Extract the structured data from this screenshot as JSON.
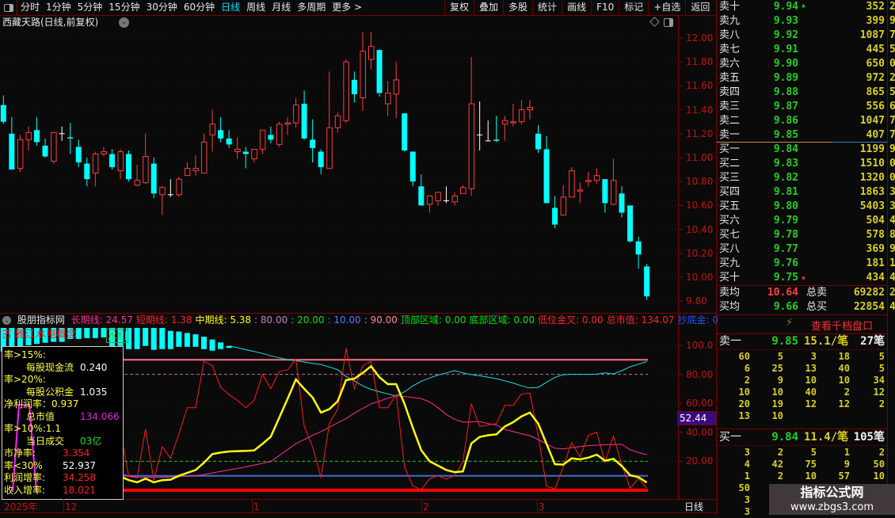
{
  "toolbar": {
    "left_periods": [
      "分时",
      "1分钟",
      "5分钟",
      "15分钟",
      "30分钟",
      "60分钟",
      "日线",
      "周线",
      "月线",
      "多周期",
      "更多 >"
    ],
    "active_period": "日线",
    "right_buttons": [
      "复权",
      "叠加",
      "多股",
      "统计",
      "画线",
      "F10",
      "标记",
      "+自选",
      "返回"
    ]
  },
  "main_chart": {
    "title": "西藏天路(日线,前复权)",
    "price_ticks": [
      "12.00",
      "11.80",
      "11.60",
      "11.40",
      "11.20",
      "11.00",
      "10.80",
      "10.60",
      "10.40",
      "10.20",
      "10.00",
      "9.80"
    ],
    "colors": {
      "up": "#ff3c3c",
      "down": "#00ffff",
      "flat": "#ffffff",
      "grid": "#5a0000",
      "axis": "#c81010"
    }
  },
  "chart_data": {
    "type": "candlestick",
    "ylim": [
      9.8,
      12.0
    ],
    "ohlc_order": [
      "open",
      "close",
      "high",
      "low"
    ],
    "candles": [
      [
        11.44,
        11.3,
        11.52,
        11.28
      ],
      [
        11.2,
        10.9,
        11.34,
        10.9
      ],
      [
        10.91,
        11.15,
        11.19,
        10.88
      ],
      [
        11.15,
        11.21,
        11.26,
        11.06
      ],
      [
        11.23,
        11.13,
        11.34,
        11.1
      ],
      [
        11.1,
        11.01,
        11.16,
        11.0
      ],
      [
        10.97,
        11.21,
        11.21,
        10.95
      ],
      [
        11.2,
        11.2,
        11.26,
        11.14
      ],
      [
        11.17,
        11.16,
        11.29,
        11.03
      ],
      [
        11.09,
        10.96,
        11.15,
        10.92
      ],
      [
        10.95,
        10.82,
        11.0,
        10.76
      ],
      [
        10.87,
        11.03,
        11.05,
        10.76
      ],
      [
        11.03,
        11.05,
        11.09,
        11.01
      ],
      [
        11.03,
        10.92,
        11.07,
        10.9
      ],
      [
        10.89,
        11.05,
        11.07,
        10.82
      ],
      [
        11.03,
        10.82,
        11.06,
        10.8
      ],
      [
        10.77,
        10.81,
        10.94,
        10.76
      ],
      [
        10.79,
        11.01,
        11.2,
        10.78
      ],
      [
        10.95,
        10.7,
        11.0,
        10.66
      ],
      [
        10.69,
        10.75,
        10.76,
        10.52
      ],
      [
        10.69,
        10.69,
        10.82,
        10.67
      ],
      [
        10.69,
        10.82,
        10.84,
        10.67
      ],
      [
        10.85,
        10.91,
        10.96,
        10.85
      ],
      [
        10.89,
        10.91,
        11.02,
        10.85
      ],
      [
        10.87,
        11.13,
        11.2,
        10.87
      ],
      [
        11.19,
        11.28,
        11.4,
        11.05
      ],
      [
        11.23,
        11.16,
        11.34,
        11.13
      ],
      [
        11.16,
        11.11,
        11.23,
        11.08
      ],
      [
        11.05,
        11.07,
        11.17,
        10.99
      ],
      [
        11.05,
        11.03,
        11.09,
        10.91
      ],
      [
        10.99,
        11.07,
        11.07,
        10.96
      ],
      [
        11.07,
        11.23,
        11.23,
        11.03
      ],
      [
        11.19,
        11.15,
        11.26,
        11.12
      ],
      [
        11.11,
        11.28,
        11.3,
        11.09
      ],
      [
        11.28,
        11.29,
        11.34,
        11.19
      ],
      [
        11.29,
        11.44,
        11.5,
        11.25
      ],
      [
        11.45,
        11.16,
        11.56,
        11.15
      ],
      [
        11.15,
        11.08,
        11.32,
        10.96
      ],
      [
        11.05,
        10.92,
        11.07,
        10.86
      ],
      [
        10.91,
        11.25,
        11.72,
        10.91
      ],
      [
        11.25,
        11.35,
        11.38,
        11.21
      ],
      [
        11.31,
        11.8,
        11.82,
        11.29
      ],
      [
        11.65,
        11.53,
        11.72,
        11.46
      ],
      [
        11.5,
        11.89,
        12.05,
        11.39
      ],
      [
        11.82,
        11.93,
        12.05,
        11.74
      ],
      [
        11.9,
        11.54,
        11.9,
        11.51
      ],
      [
        11.45,
        11.54,
        11.64,
        11.35
      ],
      [
        11.53,
        11.65,
        11.8,
        11.33
      ],
      [
        11.37,
        11.06,
        11.37,
        11.05
      ],
      [
        11.05,
        10.8,
        11.05,
        10.76
      ],
      [
        10.76,
        10.6,
        10.86,
        10.6
      ],
      [
        10.61,
        10.68,
        10.68,
        10.54
      ],
      [
        10.64,
        10.71,
        10.71,
        10.6
      ],
      [
        10.64,
        10.64,
        10.76,
        10.62
      ],
      [
        10.63,
        10.68,
        10.71,
        10.6
      ],
      [
        10.7,
        10.75,
        10.77,
        10.7
      ],
      [
        10.74,
        11.45,
        11.84,
        10.68
      ],
      [
        11.19,
        11.19,
        11.47,
        11.06
      ],
      [
        11.14,
        11.14,
        11.31,
        11.14
      ],
      [
        11.15,
        11.14,
        11.35,
        11.13
      ],
      [
        11.28,
        11.31,
        11.35,
        11.14
      ],
      [
        11.29,
        11.3,
        11.45,
        11.26
      ],
      [
        11.3,
        11.4,
        11.48,
        11.28
      ],
      [
        11.4,
        11.42,
        11.48,
        11.32
      ],
      [
        11.2,
        11.07,
        11.27,
        11.04
      ],
      [
        11.07,
        10.62,
        11.18,
        10.62
      ],
      [
        10.58,
        10.44,
        10.68,
        10.41
      ],
      [
        10.52,
        10.67,
        10.77,
        10.52
      ],
      [
        10.67,
        10.89,
        10.92,
        10.67
      ],
      [
        10.72,
        10.73,
        10.79,
        10.62
      ],
      [
        10.8,
        10.81,
        10.88,
        10.76
      ],
      [
        10.81,
        10.85,
        10.91,
        10.78
      ],
      [
        10.82,
        10.62,
        10.82,
        10.54
      ],
      [
        10.61,
        10.81,
        10.99,
        10.6
      ],
      [
        10.7,
        10.54,
        10.76,
        10.5
      ],
      [
        10.6,
        10.3,
        10.6,
        10.29
      ],
      [
        10.3,
        10.19,
        10.34,
        10.07
      ],
      [
        10.09,
        9.84,
        10.11,
        9.81
      ]
    ],
    "indicator": {
      "ylim": [
        0,
        110
      ],
      "ticks": [
        "100.0",
        "80.00",
        "60.00",
        "40.00",
        "20.00"
      ],
      "levels": [
        {
          "value": 90,
          "color": "#ff6e8c"
        },
        {
          "value": 80,
          "color": "#b070b0"
        },
        {
          "value": 20,
          "color": "#00dd00"
        },
        {
          "value": 10,
          "color": "#3c6cd0"
        },
        {
          "value": 0,
          "color": "#ff0000"
        }
      ],
      "long_line": [
        null,
        null,
        null,
        null,
        null,
        null,
        null,
        null,
        null,
        null,
        null,
        null,
        null,
        null,
        11.3,
        10,
        8.9,
        8.9,
        8.9,
        9,
        9.2,
        9.4,
        9.7,
        10,
        10.8,
        12,
        13,
        14,
        15,
        16.2,
        17.4,
        18.6,
        19.8,
        24,
        28,
        32.2,
        35,
        38,
        40.5,
        43.5,
        46.5,
        49.5,
        53.2,
        56.5,
        59.6,
        61.5,
        63.5,
        65.2,
        64.7,
        64,
        63.2,
        61,
        57,
        52.3,
        49,
        47,
        47.2,
        47.4,
        46,
        45,
        42,
        40.5,
        39,
        37.7,
        35,
        32,
        29,
        28.6,
        29.4,
        30.2,
        30.8,
        31.1,
        31.4,
        31.6,
        31.7,
        28,
        26,
        24.57
      ],
      "short_line": [
        null,
        null,
        null,
        null,
        null,
        null,
        null,
        null,
        null,
        null,
        null,
        null,
        null,
        null,
        41,
        9.5,
        8.6,
        42,
        7,
        30,
        22,
        39,
        57,
        57,
        89,
        86,
        71,
        66,
        62,
        57,
        62,
        80,
        70,
        82,
        83,
        90.5,
        44,
        30,
        8.6,
        46,
        56,
        98,
        70,
        86,
        89,
        57,
        57,
        66,
        16,
        3,
        0.4,
        8,
        10,
        7.7,
        10,
        20,
        59.6,
        44,
        45,
        46,
        58.6,
        58.6,
        66.5,
        67,
        37.7,
        2.7,
        1.1,
        16,
        33,
        23,
        38,
        40,
        19.5,
        37.4,
        17.7,
        1.3,
        8.2,
        1.38
      ],
      "mid_line": [
        null,
        null,
        null,
        null,
        null,
        null,
        null,
        null,
        null,
        null,
        null,
        null,
        null,
        null,
        9.5,
        7,
        5.5,
        8,
        5.5,
        7,
        7.3,
        10,
        12,
        14,
        19,
        25,
        26,
        26.8,
        27,
        27.2,
        27.5,
        32,
        37,
        50,
        63,
        76.5,
        70,
        64,
        53.6,
        56,
        61.4,
        76,
        77,
        81,
        85.6,
        78,
        73.2,
        73.2,
        59.6,
        43,
        27.7,
        20,
        17,
        14,
        12.5,
        13,
        32.3,
        36.8,
        38,
        38.6,
        44,
        47,
        51,
        53.6,
        46,
        32,
        18,
        17.7,
        22,
        21.3,
        22.5,
        24.6,
        20.4,
        21.7,
        16.8,
        10.4,
        9,
        5.38
      ],
      "cyan_line": [
        112,
        112,
        112,
        112,
        112,
        112,
        112,
        112,
        112,
        112,
        112,
        112,
        112,
        112,
        112,
        112,
        112,
        112,
        112,
        112,
        110,
        109.5,
        108.5,
        107.6,
        106,
        104,
        102,
        99.6,
        98.4,
        97,
        95.8,
        94.4,
        92.8,
        91.4,
        90.1,
        89.4,
        88.5,
        87.6,
        86.8,
        85,
        83.2,
        78.5,
        75.5,
        72,
        69.6,
        68,
        66.5,
        65,
        68,
        72,
        75.2,
        77.5,
        79.5,
        81,
        82.5,
        81,
        79.8,
        79,
        78,
        77,
        75.5,
        74,
        72,
        70.6,
        71,
        74.5,
        77.9,
        79.8,
        80,
        80,
        80,
        80.1,
        81,
        80.3,
        82.5,
        85.2,
        87,
        88.8
      ],
      "cyan_bars_bottom": [
        95.6,
        97,
        98.9,
        100,
        101,
        101.8,
        102.4,
        102.4,
        104.4,
        104.4,
        105,
        105,
        105.5,
        98.4,
        99.6,
        97.4,
        97.4,
        99.6,
        96.9,
        97.4,
        97.4,
        99,
        99,
        99,
        97.4,
        96.3,
        97.4,
        98.2
      ],
      "colors": {
        "long": "#ff2d95",
        "short": "#ff1a1a",
        "mid": "#ffff00",
        "cyan": "#19e0e8"
      },
      "current_value_label": "52.44"
    }
  },
  "indicator": {
    "name": "股朋指标网",
    "legend": [
      {
        "text": "长期线: 24.57",
        "color": "#ff2d95"
      },
      {
        "text": "短期线: 1.38",
        "color": "#ff2020"
      },
      {
        "text": "中期线: 5.38",
        "color": "#ffff00"
      },
      {
        "text": ": 80.00",
        "color": "#c080c0"
      },
      {
        "text": ": 20.00",
        "color": "#00e000"
      },
      {
        "text": ": 10.00",
        "color": "#4a7cff"
      },
      {
        "text": ": 90.00",
        "color": "#ff80a0"
      },
      {
        "text": "顶部区域: 0.00",
        "color": "#00e000"
      },
      {
        "text": "底部区域: 0.00",
        "color": "#00e000"
      },
      {
        "text": "低位金叉: 0.00",
        "color": "#ff2020"
      },
      {
        "text": "总市值: 134.07",
        "color": "#ff2020"
      },
      {
        "text": "抄底金: 0",
        "color": "#2050ff"
      }
    ],
    "concept_label": "古 雅江水电概念",
    "concept_label2": "水利",
    "info_box": [
      {
        "l": "率>15%:",
        "m": "每股现金流",
        "v": "0.240",
        "vc": "#ffffff"
      },
      {
        "l": "率>20%:",
        "m": "每股公积金",
        "v": "1.035",
        "vc": "#ffffff"
      },
      {
        "l": "净利润率：0.937",
        "m": "总市值",
        "v": "134.066",
        "vc": "#e020e0"
      },
      {
        "l": "率>10%:1.1",
        "m": "当日成交",
        "v": "03亿",
        "vc": "#20e020"
      },
      {
        "l": "市净率:",
        "m": "",
        "v": "3.354",
        "vc": "#ff2020"
      },
      {
        "l": "率<30%",
        "m": "",
        "v": "52.937",
        "vc": "#ffffff"
      },
      {
        "l": "利润增率:",
        "m": "",
        "v": "34.258",
        "vc": "#ff2020"
      },
      {
        "l": "收入增率:",
        "m": "",
        "v": "18.021",
        "vc": "#ff2020"
      }
    ]
  },
  "date_axis": {
    "labels": [
      "2025年",
      "12",
      "1",
      "2",
      "3"
    ],
    "period": "日线"
  },
  "order_book": {
    "sell": [
      {
        "label": "卖十",
        "price": "9.94",
        "vol": "352"
      },
      {
        "label": "卖九",
        "price": "9.93",
        "vol": "399"
      },
      {
        "label": "卖八",
        "price": "9.92",
        "vol": "1087"
      },
      {
        "label": "卖七",
        "price": "9.91",
        "vol": "445"
      },
      {
        "label": "卖六",
        "price": "9.90",
        "vol": "650"
      },
      {
        "label": "卖五",
        "price": "9.89",
        "vol": "972"
      },
      {
        "label": "卖四",
        "price": "9.88",
        "vol": "865"
      },
      {
        "label": "卖三",
        "price": "9.87",
        "vol": "556"
      },
      {
        "label": "卖二",
        "price": "9.86",
        "vol": "1047"
      },
      {
        "label": "卖一",
        "price": "9.85",
        "vol": "407"
      }
    ],
    "buy": [
      {
        "label": "买一",
        "price": "9.84",
        "vol": "1199"
      },
      {
        "label": "买二",
        "price": "9.83",
        "vol": "1510"
      },
      {
        "label": "买三",
        "price": "9.82",
        "vol": "1320"
      },
      {
        "label": "买四",
        "price": "9.81",
        "vol": "1863"
      },
      {
        "label": "买五",
        "price": "9.80",
        "vol": "5403"
      },
      {
        "label": "买六",
        "price": "9.79",
        "vol": "504"
      },
      {
        "label": "买七",
        "price": "9.78",
        "vol": "578"
      },
      {
        "label": "买八",
        "price": "9.77",
        "vol": "369"
      },
      {
        "label": "买九",
        "price": "9.76",
        "vol": "181"
      },
      {
        "label": "买十",
        "price": "9.75",
        "vol": "434"
      }
    ],
    "summary": [
      {
        "label": "卖均",
        "price": "10.64",
        "price_color": "#ff4040",
        "label2": "总卖",
        "vol": "69282"
      },
      {
        "label": "买均",
        "price": "9.66",
        "price_color": "#22d022",
        "label2": "总买",
        "vol": "22854"
      }
    ],
    "qiandang_label": "查看千档盘口",
    "ask_queue": {
      "label": "卖一",
      "price": "9.85",
      "avg": "15.1/笔",
      "count": "27笔",
      "rows": [
        [
          "60",
          "5",
          "3",
          "18",
          "5"
        ],
        [
          "6",
          "25",
          "13",
          "40",
          "5"
        ],
        [
          "2",
          "9",
          "10",
          "10",
          "34"
        ],
        [
          "10",
          "10",
          "40",
          "2",
          "12"
        ],
        [
          "20",
          "19",
          "12",
          "12",
          "2"
        ],
        [
          "13",
          "10",
          "",
          "",
          ""
        ]
      ]
    },
    "bid_queue": {
      "label": "买一",
      "price": "9.84",
      "avg": "11.4/笔",
      "count": "105笔",
      "rows": [
        [
          "3",
          "2",
          "5",
          "1",
          "2"
        ],
        [
          "4",
          "42",
          "75",
          "9",
          "50"
        ],
        [
          "1",
          "2",
          "10",
          "57",
          "10"
        ],
        [
          "50",
          "",
          "",
          "",
          ""
        ],
        [
          "3",
          "",
          "",
          "",
          ""
        ],
        [
          "3",
          "",
          "",
          "",
          ""
        ]
      ]
    }
  },
  "side_strip_digits": [
    "2",
    "9",
    "7",
    "5",
    "0",
    "2",
    "5",
    "6",
    "7",
    "7",
    "9",
    "0",
    "0",
    "3",
    "3",
    "4",
    "8",
    "9",
    "1",
    "4",
    "2",
    "4"
  ],
  "watermark": {
    "title": "指标公式网",
    "url": "www.zbgs3.com"
  }
}
